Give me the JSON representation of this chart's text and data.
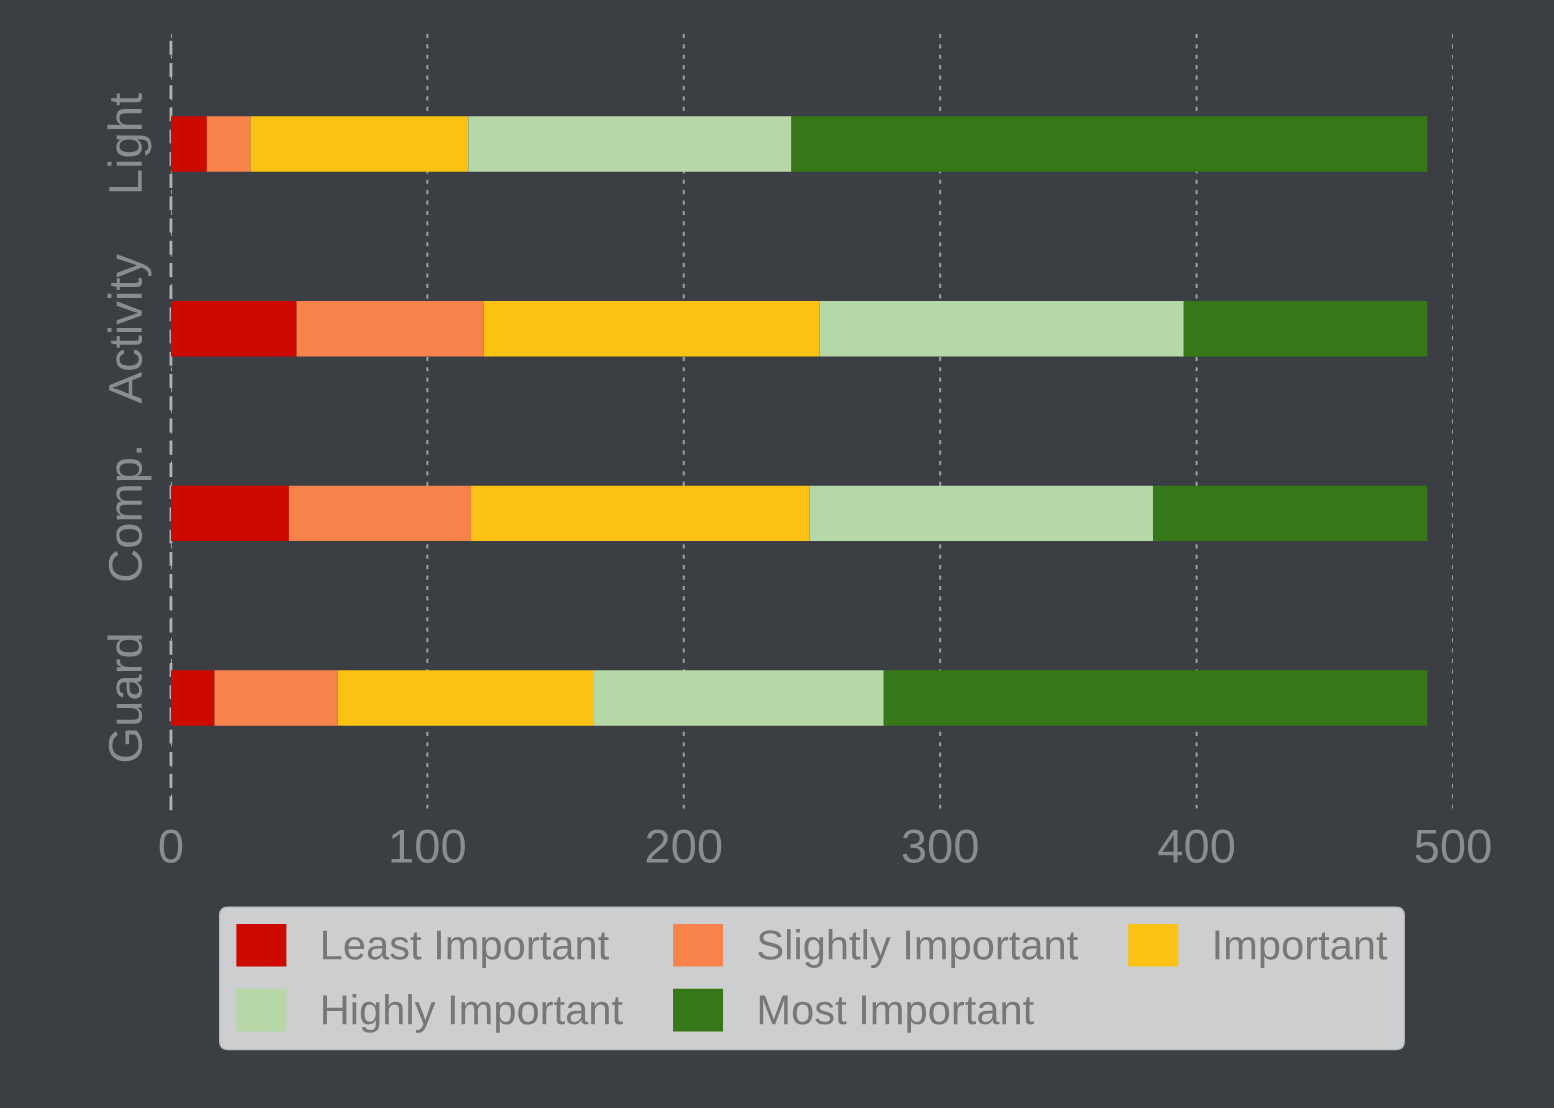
{
  "chart_data": {
    "type": "bar",
    "orientation": "horizontal",
    "stacked": true,
    "categories": [
      "Light",
      "Activity",
      "Comp.",
      "Guard"
    ],
    "series": [
      {
        "name": "Least Important",
        "color": "#cc0a00",
        "values": [
          14,
          49,
          46,
          17
        ]
      },
      {
        "name": "Slightly Important",
        "color": "#f8834a",
        "values": [
          17,
          73,
          71,
          48
        ]
      },
      {
        "name": "Important",
        "color": "#fbc213",
        "values": [
          85,
          131,
          132,
          100
        ]
      },
      {
        "name": "Highly Important",
        "color": "#b5d8a6",
        "values": [
          126,
          142,
          134,
          113
        ]
      },
      {
        "name": "Most Important",
        "color": "#367717",
        "values": [
          248,
          95,
          107,
          212
        ]
      }
    ],
    "xlim": [
      0,
      500
    ],
    "xticks": [
      0,
      100,
      200,
      300,
      400,
      500
    ],
    "grid": "x",
    "legend": "bottom"
  }
}
